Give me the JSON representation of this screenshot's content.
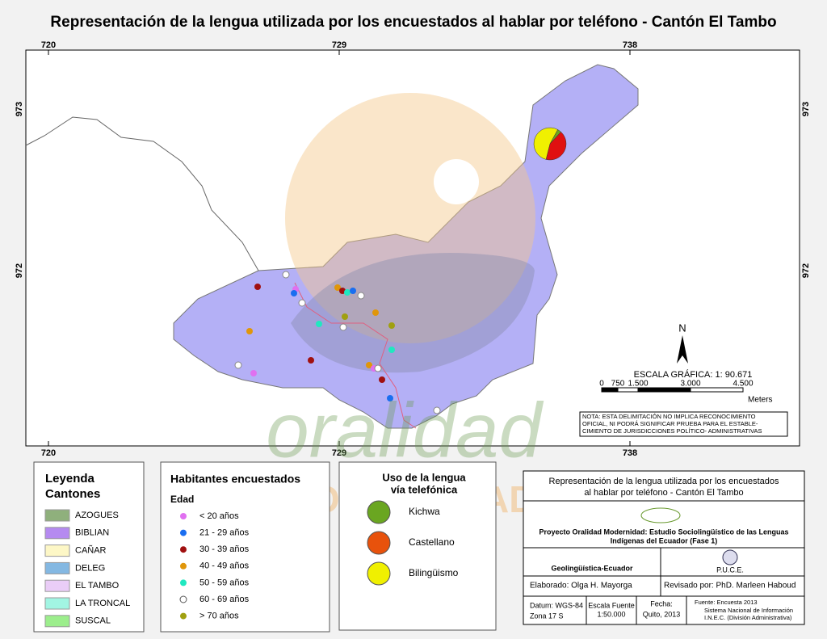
{
  "title": "Representación de la lengua utilizada por los encuestados al hablar por teléfono - Cantón El Tambo",
  "grid_labels": {
    "top": [
      "720",
      "729",
      "738"
    ],
    "bottom": [
      "720",
      "729",
      "738"
    ],
    "left": [
      "973",
      "972"
    ],
    "right": [
      "973",
      "972"
    ]
  },
  "north": "N",
  "scale": {
    "title": "ESCALA GRÁFICA: 1: 90.671",
    "ticks": [
      "0",
      "750",
      "1.500",
      "3.000",
      "4.500"
    ],
    "unit": "Meters"
  },
  "note": [
    "NOTA: ESTA DELIMITACIÓN NO IMPLICA  RECONOCIMIENTO",
    "OFICIAL, NI PODRÁ SIGNIFICAR  PRUEBA PARA EL ESTABLE-",
    "CIMIENTO DE  JURISDICCIONES POLÍTICO- ADMINISTRATIVAS"
  ],
  "watermark": {
    "script": "oralidad",
    "caps": "MODERNIDAD"
  },
  "legend_cantones": {
    "title": [
      "Leyenda",
      "Cantones"
    ],
    "items": [
      {
        "label": "AZOGUES",
        "color": "#8fb07c"
      },
      {
        "label": "BIBLIAN",
        "color": "#b58af0"
      },
      {
        "label": "CAÑAR",
        "color": "#fdf7c6"
      },
      {
        "label": "DELEG",
        "color": "#84b8e2"
      },
      {
        "label": "EL TAMBO",
        "color": "#eacdf7"
      },
      {
        "label": "LA TRONCAL",
        "color": "#a2f5e3"
      },
      {
        "label": "SUSCAL",
        "color": "#9cee8c"
      }
    ]
  },
  "legend_habitantes": {
    "title": "Habitantes encuestados",
    "subtitle": "Edad",
    "items": [
      {
        "label": "< 20 años",
        "color": "#e070f0"
      },
      {
        "label": "21 - 29 años",
        "color": "#1a6ef0"
      },
      {
        "label": "30 - 39 años",
        "color": "#a01010"
      },
      {
        "label": "40 - 49 años",
        "color": "#e0960a"
      },
      {
        "label": "50 - 59 años",
        "color": "#20e8c0"
      },
      {
        "label": "60 - 69 años",
        "color": "#ffffff"
      },
      {
        "label": "> 70 años",
        "color": "#a0a010"
      }
    ]
  },
  "legend_lengua": {
    "title": [
      "Uso de la lengua",
      "vía telefónica"
    ],
    "items": [
      {
        "label": "Kichwa",
        "color": "#6aa621"
      },
      {
        "label": "Castellano",
        "color": "#e8520c"
      },
      {
        "label": "Bilingüismo",
        "color": "#f0f000"
      }
    ]
  },
  "language_pie": [
    4,
    42,
    54
  ],
  "title_block": {
    "heading": [
      "Representación de la lengua utilizada por los encuestados",
      "al hablar por teléfono - Cantón El Tambo"
    ],
    "project": [
      "Proyecto Oralidad Modernidad: Estudio Sociolingüístico de las Lenguas",
      "Indígenas del Ecuador  (Fase 1)"
    ],
    "org_left": "Geolingüística-Ecuador",
    "org_right": "P.U.C.E.",
    "elaborado": "Elaborado: Olga H. Mayorga",
    "revisado": "Revisado por: PhD. Marleen Haboud",
    "datum": [
      "Datum: WGS-84",
      "Zona 17 S"
    ],
    "escala": [
      "Escala Fuente",
      "1:50.000"
    ],
    "fecha": [
      "Fecha:",
      "Quito, 2013"
    ],
    "fuente": [
      "Fuente: Encuesta 2013",
      "Sistema Nacional de Información",
      "I.N.E.C. (División Administrativa)"
    ]
  }
}
